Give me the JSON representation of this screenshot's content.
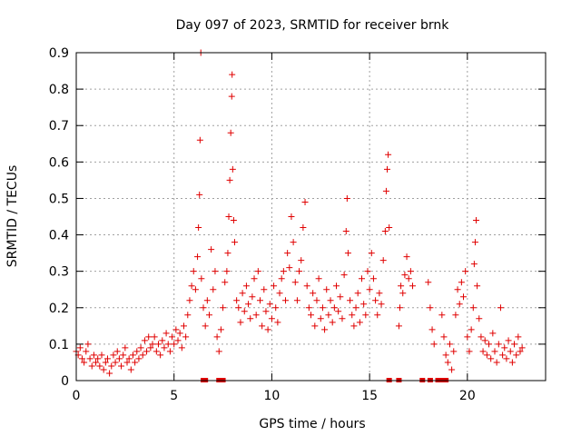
{
  "chart_data": {
    "type": "scatter",
    "title": "Day 097 of 2023, SRMTID for receiver brnk",
    "xlabel": "GPS time / hours",
    "ylabel": "SRMTID / TECUs",
    "xlim": [
      0,
      24
    ],
    "ylim": [
      0,
      0.9
    ],
    "xticks": [
      0,
      5,
      10,
      15,
      20
    ],
    "xtick_labels": [
      "0",
      "5",
      "10",
      "15",
      "20"
    ],
    "yticks": [
      0,
      0.1,
      0.2,
      0.3,
      0.4,
      0.5,
      0.6,
      0.7,
      0.8,
      0.9
    ],
    "ytick_labels": [
      "0",
      "0.1",
      "0.2",
      "0.3",
      "0.4",
      "0.5",
      "0.6",
      "0.7",
      "0.8",
      "0.9"
    ],
    "grid": true,
    "marker": "plus",
    "color": "#e00000",
    "series": [
      {
        "name": "SRMTID",
        "points": [
          [
            0.0,
            0.08
          ],
          [
            0.1,
            0.07
          ],
          [
            0.2,
            0.09
          ],
          [
            0.3,
            0.06
          ],
          [
            0.4,
            0.05
          ],
          [
            0.5,
            0.08
          ],
          [
            0.6,
            0.1
          ],
          [
            0.7,
            0.06
          ],
          [
            0.8,
            0.04
          ],
          [
            0.9,
            0.07
          ],
          [
            1.0,
            0.05
          ],
          [
            1.1,
            0.06
          ],
          [
            1.2,
            0.04
          ],
          [
            1.3,
            0.07
          ],
          [
            1.4,
            0.03
          ],
          [
            1.5,
            0.05
          ],
          [
            1.6,
            0.06
          ],
          [
            1.7,
            0.02
          ],
          [
            1.8,
            0.04
          ],
          [
            1.9,
            0.07
          ],
          [
            2.0,
            0.05
          ],
          [
            2.1,
            0.08
          ],
          [
            2.2,
            0.06
          ],
          [
            2.3,
            0.04
          ],
          [
            2.4,
            0.07
          ],
          [
            2.5,
            0.09
          ],
          [
            2.6,
            0.05
          ],
          [
            2.7,
            0.06
          ],
          [
            2.8,
            0.03
          ],
          [
            2.9,
            0.07
          ],
          [
            3.0,
            0.05
          ],
          [
            3.1,
            0.08
          ],
          [
            3.2,
            0.06
          ],
          [
            3.3,
            0.09
          ],
          [
            3.4,
            0.07
          ],
          [
            3.5,
            0.11
          ],
          [
            3.6,
            0.08
          ],
          [
            3.7,
            0.12
          ],
          [
            3.8,
            0.09
          ],
          [
            3.9,
            0.1
          ],
          [
            4.0,
            0.12
          ],
          [
            4.1,
            0.08
          ],
          [
            4.2,
            0.1
          ],
          [
            4.3,
            0.07
          ],
          [
            4.4,
            0.11
          ],
          [
            4.5,
            0.09
          ],
          [
            4.6,
            0.13
          ],
          [
            4.7,
            0.1
          ],
          [
            4.8,
            0.08
          ],
          [
            4.9,
            0.12
          ],
          [
            5.0,
            0.1
          ],
          [
            5.1,
            0.14
          ],
          [
            5.2,
            0.11
          ],
          [
            5.3,
            0.13
          ],
          [
            5.4,
            0.09
          ],
          [
            5.5,
            0.15
          ],
          [
            5.6,
            0.12
          ],
          [
            5.7,
            0.18
          ],
          [
            5.8,
            0.22
          ],
          [
            5.9,
            0.26
          ],
          [
            6.0,
            0.3
          ],
          [
            6.1,
            0.25
          ],
          [
            6.2,
            0.34
          ],
          [
            6.25,
            0.42
          ],
          [
            6.3,
            0.51
          ],
          [
            6.33,
            0.66
          ],
          [
            6.37,
            0.9
          ],
          [
            6.4,
            0.28
          ],
          [
            6.5,
            0.2
          ],
          [
            6.6,
            0.15
          ],
          [
            6.7,
            0.22
          ],
          [
            6.8,
            0.18
          ],
          [
            6.9,
            0.36
          ],
          [
            7.0,
            0.25
          ],
          [
            7.1,
            0.3
          ],
          [
            7.2,
            0.12
          ],
          [
            7.3,
            0.08
          ],
          [
            7.4,
            0.14
          ],
          [
            7.5,
            0.2
          ],
          [
            7.6,
            0.27
          ],
          [
            7.7,
            0.3
          ],
          [
            7.75,
            0.35
          ],
          [
            7.8,
            0.45
          ],
          [
            7.85,
            0.55
          ],
          [
            7.9,
            0.68
          ],
          [
            7.95,
            0.78
          ],
          [
            7.97,
            0.84
          ],
          [
            8.0,
            0.58
          ],
          [
            8.05,
            0.44
          ],
          [
            8.1,
            0.38
          ],
          [
            8.2,
            0.22
          ],
          [
            8.3,
            0.2
          ],
          [
            8.4,
            0.16
          ],
          [
            8.5,
            0.24
          ],
          [
            8.6,
            0.19
          ],
          [
            8.7,
            0.26
          ],
          [
            8.8,
            0.21
          ],
          [
            8.9,
            0.17
          ],
          [
            9.0,
            0.23
          ],
          [
            9.1,
            0.28
          ],
          [
            9.2,
            0.18
          ],
          [
            9.3,
            0.3
          ],
          [
            9.4,
            0.22
          ],
          [
            9.5,
            0.15
          ],
          [
            9.6,
            0.25
          ],
          [
            9.7,
            0.19
          ],
          [
            9.8,
            0.14
          ],
          [
            9.9,
            0.21
          ],
          [
            10.0,
            0.17
          ],
          [
            10.1,
            0.26
          ],
          [
            10.2,
            0.2
          ],
          [
            10.3,
            0.16
          ],
          [
            10.4,
            0.24
          ],
          [
            10.5,
            0.28
          ],
          [
            10.6,
            0.3
          ],
          [
            10.7,
            0.22
          ],
          [
            10.8,
            0.35
          ],
          [
            10.9,
            0.31
          ],
          [
            11.0,
            0.45
          ],
          [
            11.1,
            0.38
          ],
          [
            11.2,
            0.27
          ],
          [
            11.3,
            0.22
          ],
          [
            11.4,
            0.3
          ],
          [
            11.5,
            0.33
          ],
          [
            11.6,
            0.42
          ],
          [
            11.7,
            0.49
          ],
          [
            11.8,
            0.26
          ],
          [
            11.9,
            0.2
          ],
          [
            12.0,
            0.18
          ],
          [
            12.1,
            0.24
          ],
          [
            12.2,
            0.15
          ],
          [
            12.3,
            0.22
          ],
          [
            12.4,
            0.28
          ],
          [
            12.5,
            0.17
          ],
          [
            12.6,
            0.2
          ],
          [
            12.7,
            0.14
          ],
          [
            12.8,
            0.25
          ],
          [
            12.9,
            0.18
          ],
          [
            13.0,
            0.22
          ],
          [
            13.1,
            0.16
          ],
          [
            13.2,
            0.2
          ],
          [
            13.3,
            0.26
          ],
          [
            13.4,
            0.19
          ],
          [
            13.5,
            0.23
          ],
          [
            13.6,
            0.17
          ],
          [
            13.7,
            0.29
          ],
          [
            13.8,
            0.41
          ],
          [
            13.85,
            0.5
          ],
          [
            13.9,
            0.35
          ],
          [
            14.0,
            0.22
          ],
          [
            14.1,
            0.18
          ],
          [
            14.2,
            0.15
          ],
          [
            14.3,
            0.2
          ],
          [
            14.4,
            0.24
          ],
          [
            14.5,
            0.16
          ],
          [
            14.6,
            0.28
          ],
          [
            14.7,
            0.21
          ],
          [
            14.8,
            0.18
          ],
          [
            14.9,
            0.3
          ],
          [
            15.0,
            0.25
          ],
          [
            15.1,
            0.35
          ],
          [
            15.2,
            0.28
          ],
          [
            15.3,
            0.22
          ],
          [
            15.4,
            0.18
          ],
          [
            15.5,
            0.24
          ],
          [
            15.6,
            0.21
          ],
          [
            15.7,
            0.33
          ],
          [
            15.8,
            0.41
          ],
          [
            15.85,
            0.52
          ],
          [
            15.9,
            0.58
          ],
          [
            15.95,
            0.62
          ],
          [
            16.0,
            0.42
          ],
          [
            16.5,
            0.15
          ],
          [
            16.55,
            0.2
          ],
          [
            16.6,
            0.26
          ],
          [
            16.7,
            0.24
          ],
          [
            16.8,
            0.29
          ],
          [
            16.9,
            0.34
          ],
          [
            17.0,
            0.28
          ],
          [
            17.1,
            0.3
          ],
          [
            17.2,
            0.26
          ],
          [
            18.0,
            0.27
          ],
          [
            18.1,
            0.2
          ],
          [
            18.2,
            0.14
          ],
          [
            18.3,
            0.1
          ],
          [
            18.7,
            0.18
          ],
          [
            18.8,
            0.12
          ],
          [
            18.9,
            0.07
          ],
          [
            19.0,
            0.05
          ],
          [
            19.1,
            0.1
          ],
          [
            19.2,
            0.03
          ],
          [
            19.3,
            0.08
          ],
          [
            19.4,
            0.18
          ],
          [
            19.5,
            0.25
          ],
          [
            19.6,
            0.21
          ],
          [
            19.7,
            0.27
          ],
          [
            19.8,
            0.23
          ],
          [
            19.9,
            0.3
          ],
          [
            20.0,
            0.12
          ],
          [
            20.1,
            0.08
          ],
          [
            20.2,
            0.14
          ],
          [
            20.3,
            0.2
          ],
          [
            20.35,
            0.32
          ],
          [
            20.4,
            0.38
          ],
          [
            20.45,
            0.44
          ],
          [
            20.5,
            0.26
          ],
          [
            20.6,
            0.17
          ],
          [
            20.7,
            0.12
          ],
          [
            20.8,
            0.08
          ],
          [
            20.9,
            0.11
          ],
          [
            21.0,
            0.07
          ],
          [
            21.1,
            0.1
          ],
          [
            21.2,
            0.06
          ],
          [
            21.3,
            0.13
          ],
          [
            21.4,
            0.08
          ],
          [
            21.5,
            0.05
          ],
          [
            21.6,
            0.1
          ],
          [
            21.7,
            0.2
          ],
          [
            21.8,
            0.07
          ],
          [
            21.9,
            0.09
          ],
          [
            22.0,
            0.06
          ],
          [
            22.1,
            0.11
          ],
          [
            22.2,
            0.08
          ],
          [
            22.3,
            0.05
          ],
          [
            22.4,
            0.1
          ],
          [
            22.5,
            0.07
          ],
          [
            22.6,
            0.12
          ],
          [
            22.7,
            0.08
          ],
          [
            22.8,
            0.09
          ]
        ]
      }
    ],
    "gap_markers_x": [
      6.5,
      6.6,
      7.3,
      7.4,
      7.5,
      16.0,
      16.5,
      17.7,
      18.1,
      18.5,
      18.7,
      18.8,
      18.9
    ]
  }
}
